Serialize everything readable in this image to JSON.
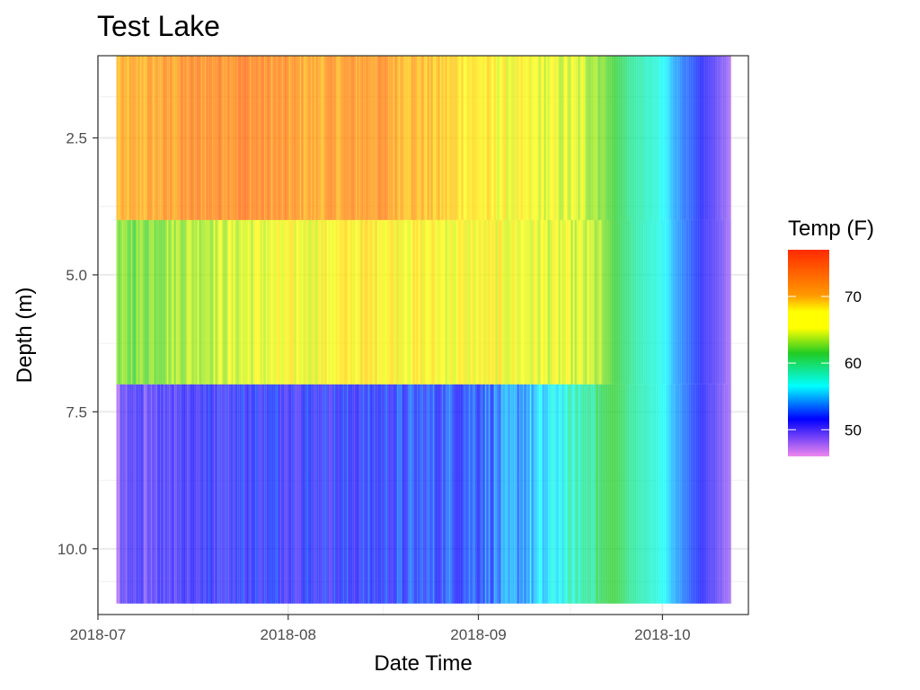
{
  "chart_data": {
    "type": "heatmap",
    "title": "Test Lake",
    "xlabel": "Date Time",
    "ylabel": "Depth (m)",
    "x_range": [
      "2018-07-01",
      "2018-10-15"
    ],
    "y_range": [
      11.2,
      1.0
    ],
    "y_reversed": true,
    "x_ticks": [
      "2018-07",
      "2018-08",
      "2018-09",
      "2018-10"
    ],
    "y_ticks": [
      "2.5",
      "5.0",
      "7.5",
      "10.0"
    ],
    "grid": true,
    "legend": {
      "title": "Temp (F)",
      "position": "right",
      "range": [
        46,
        77
      ],
      "ticks": [
        "70",
        "60",
        "50"
      ],
      "colors_high_to_low": [
        "#ff2a00",
        "#ff9900",
        "#ffff00",
        "#22cc22",
        "#00ffff",
        "#0000ff",
        "#ee88ee"
      ]
    },
    "data_start": "2018-07-04",
    "data_end": "2018-10-12",
    "layers": [
      {
        "depth_top": 1.0,
        "depth_bottom": 4.0,
        "temps": [
          {
            "date": "2018-07-04",
            "temp": 71
          },
          {
            "date": "2018-07-15",
            "temp": 73
          },
          {
            "date": "2018-07-24",
            "temp": 74
          },
          {
            "date": "2018-08-05",
            "temp": 72
          },
          {
            "date": "2018-08-15",
            "temp": 73
          },
          {
            "date": "2018-08-27",
            "temp": 70
          },
          {
            "date": "2018-09-05",
            "temp": 68
          },
          {
            "date": "2018-09-15",
            "temp": 67
          },
          {
            "date": "2018-09-20",
            "temp": 66
          },
          {
            "date": "2018-09-23",
            "temp": 63
          },
          {
            "date": "2018-09-26",
            "temp": 60
          },
          {
            "date": "2018-09-30",
            "temp": 58
          },
          {
            "date": "2018-10-03",
            "temp": 55
          },
          {
            "date": "2018-10-07",
            "temp": 52
          },
          {
            "date": "2018-10-10",
            "temp": 50
          },
          {
            "date": "2018-10-12",
            "temp": 48
          }
        ]
      },
      {
        "depth_top": 4.0,
        "depth_bottom": 7.0,
        "temps": [
          {
            "date": "2018-07-04",
            "temp": 64
          },
          {
            "date": "2018-07-15",
            "temp": 66
          },
          {
            "date": "2018-07-24",
            "temp": 67
          },
          {
            "date": "2018-08-05",
            "temp": 68
          },
          {
            "date": "2018-08-15",
            "temp": 69
          },
          {
            "date": "2018-08-27",
            "temp": 68
          },
          {
            "date": "2018-09-05",
            "temp": 68
          },
          {
            "date": "2018-09-15",
            "temp": 67
          },
          {
            "date": "2018-09-20",
            "temp": 66
          },
          {
            "date": "2018-09-23",
            "temp": 63
          },
          {
            "date": "2018-09-26",
            "temp": 60
          },
          {
            "date": "2018-09-30",
            "temp": 58
          },
          {
            "date": "2018-10-03",
            "temp": 55
          },
          {
            "date": "2018-10-07",
            "temp": 52
          },
          {
            "date": "2018-10-10",
            "temp": 50
          },
          {
            "date": "2018-10-12",
            "temp": 48
          }
        ]
      },
      {
        "depth_top": 7.0,
        "depth_bottom": 11.0,
        "temps": [
          {
            "date": "2018-07-04",
            "temp": 49
          },
          {
            "date": "2018-07-10",
            "temp": 51
          },
          {
            "date": "2018-07-24",
            "temp": 52
          },
          {
            "date": "2018-08-10",
            "temp": 52
          },
          {
            "date": "2018-08-27",
            "temp": 53
          },
          {
            "date": "2018-09-05",
            "temp": 54
          },
          {
            "date": "2018-09-12",
            "temp": 56
          },
          {
            "date": "2018-09-17",
            "temp": 59
          },
          {
            "date": "2018-09-21",
            "temp": 62
          },
          {
            "date": "2018-09-23",
            "temp": 63
          },
          {
            "date": "2018-09-26",
            "temp": 60
          },
          {
            "date": "2018-09-30",
            "temp": 58
          },
          {
            "date": "2018-10-03",
            "temp": 55
          },
          {
            "date": "2018-10-07",
            "temp": 52
          },
          {
            "date": "2018-10-10",
            "temp": 50
          },
          {
            "date": "2018-10-12",
            "temp": 48
          }
        ]
      }
    ]
  }
}
